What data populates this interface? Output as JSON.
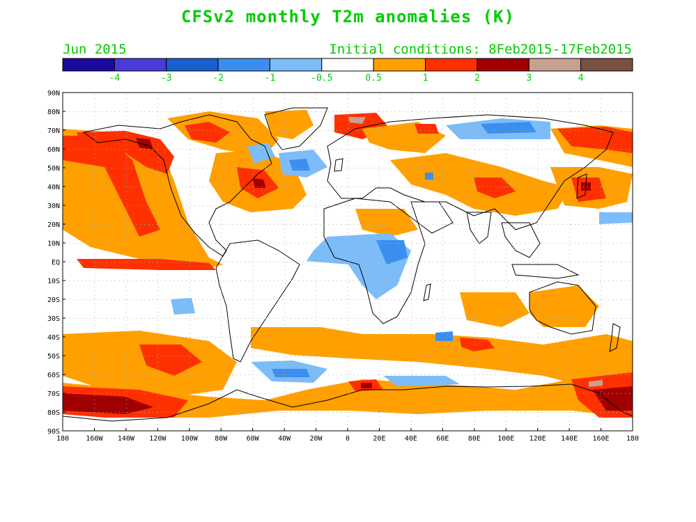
{
  "title": "CFSv2 monthly T2m anomalies (K)",
  "subtitle_left": "Jun 2015",
  "subtitle_right": "Initial conditions: 8Feb2015-17Feb2015",
  "colors": {
    "text": "#00cc00",
    "ocean": "#ffffff",
    "coast": "#000000",
    "grid": "#b0b0b0"
  },
  "legend": {
    "boundaries": [
      "-4",
      "-3",
      "-2",
      "-1",
      "-0.5",
      "0.5",
      "1",
      "2",
      "3",
      "4"
    ],
    "colors": [
      "#1c0aa0",
      "#4a3ad6",
      "#1a5fd0",
      "#3b8ef0",
      "#7cbcf8",
      "#ffffff",
      "#ffa000",
      "#ff3000",
      "#a00000",
      "#c8a090",
      "#7a5040"
    ]
  },
  "axes": {
    "lat_labels": [
      "90N",
      "80N",
      "70N",
      "60N",
      "50N",
      "40N",
      "30N",
      "20N",
      "10N",
      "EQ",
      "10S",
      "20S",
      "30S",
      "40S",
      "50S",
      "60S",
      "70S",
      "80S",
      "90S"
    ],
    "lon_labels": [
      "180",
      "160W",
      "140W",
      "120W",
      "100W",
      "80W",
      "60W",
      "40W",
      "20W",
      "0",
      "20E",
      "40E",
      "60E",
      "80E",
      "100E",
      "120E",
      "140E",
      "160E",
      "180"
    ],
    "lat_range": [
      -90,
      90
    ],
    "lon_range": [
      -180,
      180
    ]
  }
}
